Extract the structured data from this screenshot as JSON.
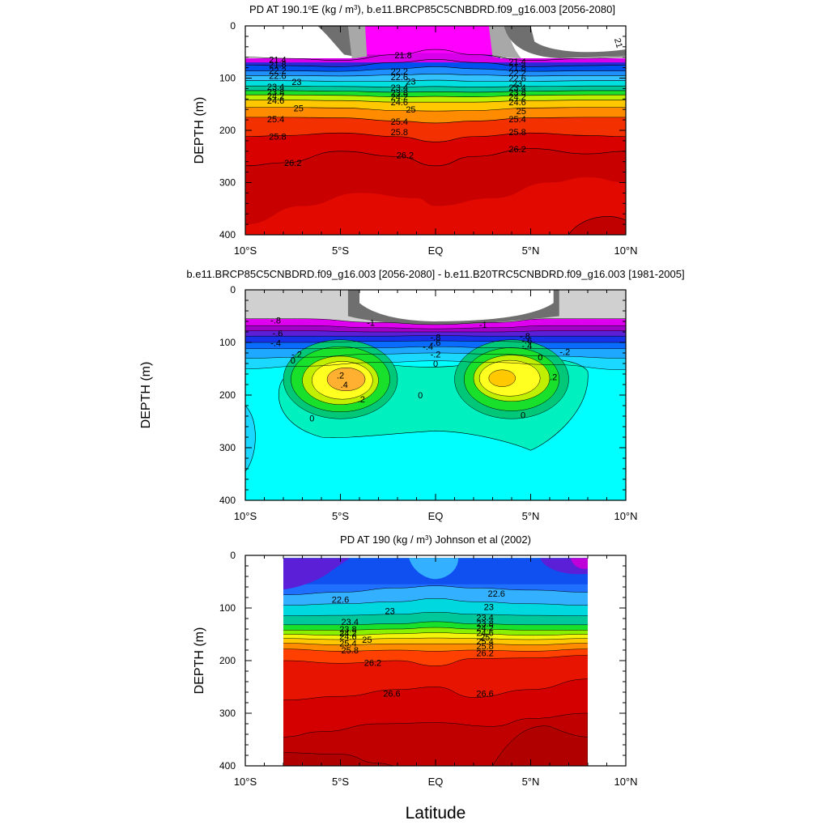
{
  "chart_data": [
    {
      "type": "filled-contour",
      "title_main": "PD AT 190.1",
      "title_super": "o",
      "title_rest": "E (kg / m",
      "title_super2": "3",
      "title_end": "), b.e11.BRCP85C5CNBDRD.f09_g16.003 [2056-2080]",
      "ylabel": "DEPTH (m)",
      "xlabel": "",
      "x_ticks": [
        "10°S",
        "5°S",
        "EQ",
        "5°N",
        "10°N"
      ],
      "x_values": [
        -10,
        -5,
        0,
        5,
        10
      ],
      "xlim": [
        -10,
        10
      ],
      "y_ticks": [
        "0",
        "100",
        "200",
        "300",
        "400"
      ],
      "y_values": [
        0,
        100,
        200,
        300,
        400
      ],
      "ylim": [
        0,
        400
      ],
      "colors": [
        "#6f6f6f",
        "#a8a8a8",
        "#ff00ff",
        "#c000c8",
        "#7a1fd6",
        "#2a2ad8",
        "#0036e8",
        "#0066ff",
        "#1f8fff",
        "#3fb0ff",
        "#33d0ff",
        "#00e0e0",
        "#00c89a",
        "#19e02a",
        "#8af000",
        "#f4f40a",
        "#ffc800",
        "#ff8c00",
        "#ff5a00",
        "#f42a00",
        "#e61400",
        "#d40000",
        "#b80000"
      ],
      "isopycnals": [
        {
          "value": "21.4",
          "depth_at": [
            [
              -10,
              60
            ],
            [
              -8,
              62
            ],
            [
              -5,
              66
            ],
            [
              -2,
              55
            ],
            [
              0,
              45
            ],
            [
              2,
              55
            ],
            [
              5,
              66
            ],
            [
              8,
              62
            ],
            [
              10,
              60
            ]
          ]
        },
        {
          "value": "21.8",
          "depth_at": [
            [
              -10,
              75
            ],
            [
              -8,
              76
            ],
            [
              -5,
              78
            ],
            [
              -2,
              70
            ],
            [
              0,
              64
            ],
            [
              2,
              70
            ],
            [
              5,
              78
            ],
            [
              8,
              76
            ],
            [
              10,
              75
            ]
          ]
        },
        {
          "value": "22.2",
          "depth_at": [
            [
              -10,
              86
            ],
            [
              -8,
              86
            ],
            [
              -5,
              87
            ],
            [
              -2,
              82
            ],
            [
              0,
              78
            ],
            [
              2,
              82
            ],
            [
              5,
              87
            ],
            [
              8,
              86
            ],
            [
              10,
              86
            ]
          ]
        },
        {
          "value": "22.6",
          "depth_at": [
            [
              -10,
              95
            ],
            [
              -8,
              95
            ],
            [
              -5,
              96
            ],
            [
              -2,
              94
            ],
            [
              0,
              92
            ],
            [
              2,
              94
            ],
            [
              5,
              96
            ],
            [
              8,
              95
            ],
            [
              10,
              95
            ]
          ]
        },
        {
          "value": "23",
          "depth_at": [
            [
              -10,
              105
            ],
            [
              -8,
              105
            ],
            [
              -5,
              106
            ],
            [
              -2,
              106
            ],
            [
              0,
              104
            ],
            [
              2,
              106
            ],
            [
              5,
              106
            ],
            [
              8,
              105
            ],
            [
              10,
              105
            ]
          ]
        },
        {
          "value": "23.4",
          "depth_at": [
            [
              -10,
              115
            ],
            [
              -8,
              115
            ],
            [
              -5,
              116
            ],
            [
              -2,
              117
            ],
            [
              0,
              116
            ],
            [
              2,
              117
            ],
            [
              5,
              116
            ],
            [
              8,
              115
            ],
            [
              10,
              115
            ]
          ]
        },
        {
          "value": "23.8",
          "depth_at": [
            [
              -10,
              124
            ],
            [
              -8,
              124
            ],
            [
              -5,
              125
            ],
            [
              -2,
              127
            ],
            [
              0,
              126
            ],
            [
              2,
              127
            ],
            [
              5,
              125
            ],
            [
              8,
              124
            ],
            [
              10,
              124
            ]
          ]
        },
        {
          "value": "24.2",
          "depth_at": [
            [
              -10,
              132
            ],
            [
              -8,
              132
            ],
            [
              -5,
              133
            ],
            [
              -2,
              136
            ],
            [
              0,
              135
            ],
            [
              2,
              136
            ],
            [
              5,
              133
            ],
            [
              8,
              132
            ],
            [
              10,
              132
            ]
          ]
        },
        {
          "value": "24.6",
          "depth_at": [
            [
              -10,
              142
            ],
            [
              -8,
              142
            ],
            [
              -5,
              143
            ],
            [
              -2,
              146
            ],
            [
              0,
              146
            ],
            [
              2,
              146
            ],
            [
              5,
              143
            ],
            [
              8,
              142
            ],
            [
              10,
              142
            ]
          ]
        },
        {
          "value": "25",
          "depth_at": [
            [
              -10,
              156
            ],
            [
              -8,
              156
            ],
            [
              -5,
              157
            ],
            [
              -2,
              162
            ],
            [
              0,
              163
            ],
            [
              2,
              162
            ],
            [
              5,
              157
            ],
            [
              8,
              156
            ],
            [
              10,
              156
            ]
          ]
        },
        {
          "value": "25.4",
          "depth_at": [
            [
              -10,
              175
            ],
            [
              -8,
              175
            ],
            [
              -5,
              176
            ],
            [
              -2,
              182
            ],
            [
              0,
              186
            ],
            [
              2,
              182
            ],
            [
              5,
              176
            ],
            [
              8,
              175
            ],
            [
              10,
              175
            ]
          ]
        },
        {
          "value": "25.8",
          "depth_at": [
            [
              -10,
              212
            ],
            [
              -8,
              210
            ],
            [
              -5,
              205
            ],
            [
              -2,
              212
            ],
            [
              0,
              222
            ],
            [
              2,
              212
            ],
            [
              5,
              205
            ],
            [
              8,
              210
            ],
            [
              10,
              212
            ]
          ]
        },
        {
          "value": "26.2",
          "depth_at": [
            [
              -10,
              268
            ],
            [
              -8,
              262
            ],
            [
              -5,
              240
            ],
            [
              -2,
              250
            ],
            [
              0,
              268
            ],
            [
              2,
              250
            ],
            [
              5,
              235
            ],
            [
              8,
              245
            ],
            [
              10,
              240
            ]
          ]
        }
      ]
    },
    {
      "type": "filled-contour",
      "title_main": "b.e11.BRCP85C5CNBDRD.f09_g16.003 [2056-2080] - b.e11.B20TRC5CNBDRD.f09_g16.003 [1981-2005]",
      "ylabel": "DEPTH (m)",
      "x_ticks": [
        "10°S",
        "5°S",
        "EQ",
        "5°N",
        "10°N"
      ],
      "x_values": [
        -10,
        -5,
        0,
        5,
        10
      ],
      "xlim": [
        -10,
        10
      ],
      "y_ticks": [
        "0",
        "100",
        "200",
        "300",
        "400"
      ],
      "y_values": [
        0,
        100,
        200,
        300,
        400
      ],
      "ylim": [
        0,
        400
      ],
      "contour_labels": [
        "-.8",
        "-.6",
        "-.4",
        "-.2",
        "0",
        ".2",
        ".4",
        "-1",
        "-.8",
        "-.6",
        "-.4",
        "-.2",
        "0",
        ".2",
        "-1",
        "-.8",
        "-.6",
        "-.4",
        "-.2",
        "0",
        ".2",
        "0",
        "0",
        "0"
      ],
      "anomaly_values": {
        "min": -1.2,
        "max": 0.6
      }
    },
    {
      "type": "filled-contour",
      "title_main": "PD AT 190 (kg / m",
      "title_super": "3",
      "title_end": ") Johnson et al (2002)",
      "ylabel": "DEPTH (m)",
      "xlabel": "Latitude",
      "x_ticks": [
        "10°S",
        "5°S",
        "EQ",
        "5°N",
        "10°N"
      ],
      "x_values": [
        -10,
        -5,
        0,
        5,
        10
      ],
      "xlim": [
        -10,
        10
      ],
      "y_ticks": [
        "0",
        "100",
        "200",
        "300",
        "400"
      ],
      "y_values": [
        0,
        100,
        200,
        300,
        400
      ],
      "ylim": [
        0,
        400
      ],
      "data_extent_lat": [
        -8,
        8
      ],
      "isopycnals": [
        {
          "value": "22.6",
          "depth_at": [
            [
              -8,
              75
            ],
            [
              -5,
              70
            ],
            [
              -2,
              62
            ],
            [
              0,
              58
            ],
            [
              2,
              62
            ],
            [
              5,
              66
            ],
            [
              8,
              70
            ]
          ]
        },
        {
          "value": "23",
          "depth_at": [
            [
              -8,
              95
            ],
            [
              -5,
              92
            ],
            [
              -2,
              88
            ],
            [
              0,
              82
            ],
            [
              2,
              88
            ],
            [
              5,
              92
            ],
            [
              8,
              95
            ]
          ]
        },
        {
          "value": "23.4",
          "depth_at": [
            [
              -8,
              115
            ],
            [
              -5,
              114
            ],
            [
              -2,
              112
            ],
            [
              0,
              108
            ],
            [
              2,
              112
            ],
            [
              5,
              114
            ],
            [
              8,
              115
            ]
          ]
        },
        {
          "value": "23.8",
          "depth_at": [
            [
              -8,
              132
            ],
            [
              -5,
              132
            ],
            [
              -2,
              130
            ],
            [
              0,
              126
            ],
            [
              2,
              130
            ],
            [
              5,
              132
            ],
            [
              8,
              132
            ]
          ]
        },
        {
          "value": "24.2",
          "depth_at": [
            [
              -8,
              142
            ],
            [
              -5,
              142
            ],
            [
              -2,
              140
            ],
            [
              0,
              137
            ],
            [
              2,
              140
            ],
            [
              5,
              142
            ],
            [
              8,
              142
            ]
          ]
        },
        {
          "value": "24.6",
          "depth_at": [
            [
              -8,
              150
            ],
            [
              -5,
              152
            ],
            [
              -2,
              149
            ],
            [
              0,
              147
            ],
            [
              2,
              149
            ],
            [
              5,
              152
            ],
            [
              8,
              150
            ]
          ]
        },
        {
          "value": "25",
          "depth_at": [
            [
              -8,
              158
            ],
            [
              -5,
              160
            ],
            [
              -2,
              158
            ],
            [
              0,
              157
            ],
            [
              2,
              158
            ],
            [
              5,
              160
            ],
            [
              8,
              158
            ]
          ]
        },
        {
          "value": "25.4",
          "depth_at": [
            [
              -8,
              167
            ],
            [
              -5,
              170
            ],
            [
              -2,
              168
            ],
            [
              0,
              168
            ],
            [
              2,
              168
            ],
            [
              5,
              170
            ],
            [
              8,
              167
            ]
          ]
        },
        {
          "value": "25.8",
          "depth_at": [
            [
              -8,
              178
            ],
            [
              -5,
              182
            ],
            [
              -2,
              180
            ],
            [
              0,
              182
            ],
            [
              2,
              180
            ],
            [
              5,
              182
            ],
            [
              8,
              178
            ]
          ]
        },
        {
          "value": "26.2",
          "depth_at": [
            [
              -8,
              200
            ],
            [
              -5,
              205
            ],
            [
              -2,
              200
            ],
            [
              0,
              210
            ],
            [
              2,
              196
            ],
            [
              5,
              195
            ],
            [
              8,
              190
            ]
          ]
        },
        {
          "value": "26.6",
          "depth_at": [
            [
              -8,
              275
            ],
            [
              -5,
              268
            ],
            [
              -2,
              255
            ],
            [
              0,
              250
            ],
            [
              2,
              270
            ],
            [
              5,
              255
            ],
            [
              8,
              235
            ]
          ]
        }
      ]
    }
  ]
}
